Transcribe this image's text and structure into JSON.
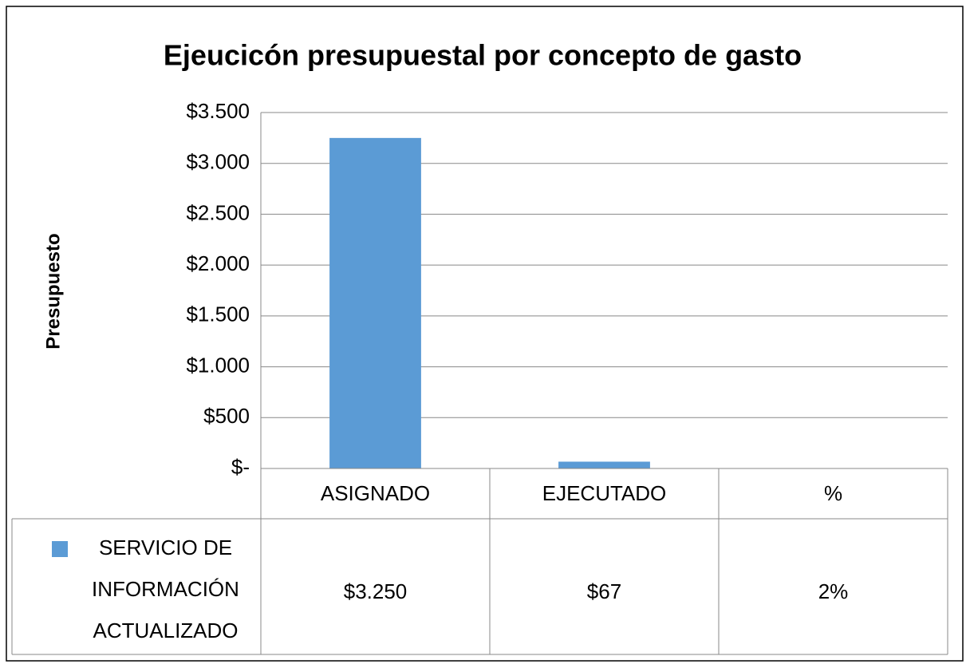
{
  "chart_data": {
    "type": "bar",
    "title": "Ejeucicón presupuestal  por concepto de gasto",
    "y_label": "Presupuesto",
    "categories": [
      "ASIGNADO",
      "EJECUTADO",
      "%"
    ],
    "series": [
      {
        "name": "SERVICIO DE INFORMACIÓN ACTUALIZADO",
        "color": "#5b9bd5",
        "values": [
          3250,
          67,
          2
        ],
        "value_labels": [
          "$3.250",
          "$67",
          "2%"
        ]
      }
    ],
    "ylim": [
      0,
      3500
    ],
    "yticks": [
      {
        "value": 0,
        "label": "$-"
      },
      {
        "value": 500,
        "label": "$500"
      },
      {
        "value": 1000,
        "label": "$1.000"
      },
      {
        "value": 1500,
        "label": "$1.500"
      },
      {
        "value": 2000,
        "label": "$2.000"
      },
      {
        "value": 2500,
        "label": "$2.500"
      },
      {
        "value": 3000,
        "label": "$3.000"
      },
      {
        "value": 3500,
        "label": "$3.500"
      }
    ],
    "grid": true
  }
}
